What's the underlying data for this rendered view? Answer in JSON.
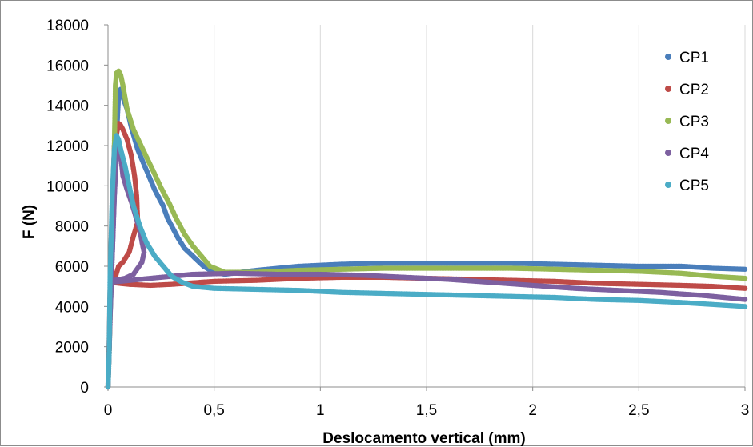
{
  "chart_data": {
    "type": "scatter",
    "xlabel": "Deslocamento vertical (mm)",
    "ylabel": "F (N)",
    "xlim": [
      0,
      3
    ],
    "ylim": [
      0,
      18000
    ],
    "x_ticks": [
      0,
      0.5,
      1,
      1.5,
      2,
      2.5,
      3
    ],
    "x_tick_labels": [
      "0",
      "0,5",
      "1",
      "1,5",
      "2",
      "2,5",
      "3"
    ],
    "y_ticks": [
      0,
      2000,
      4000,
      6000,
      8000,
      10000,
      12000,
      14000,
      16000,
      18000
    ],
    "y_tick_labels": [
      "0",
      "2000",
      "4000",
      "6000",
      "8000",
      "10000",
      "12000",
      "14000",
      "16000",
      "18000"
    ],
    "grid": "vertical",
    "legend_position": "top-right",
    "series": [
      {
        "name": "CP1",
        "color": "#4a7ebb",
        "points": [
          [
            0,
            0
          ],
          [
            0.005,
            1500
          ],
          [
            0.01,
            3500
          ],
          [
            0.02,
            6500
          ],
          [
            0.03,
            9500
          ],
          [
            0.04,
            12500
          ],
          [
            0.05,
            14500
          ],
          [
            0.06,
            14800
          ],
          [
            0.07,
            14400
          ],
          [
            0.09,
            13800
          ],
          [
            0.11,
            12900
          ],
          [
            0.14,
            11800
          ],
          [
            0.18,
            10800
          ],
          [
            0.22,
            9800
          ],
          [
            0.26,
            9000
          ],
          [
            0.28,
            8400
          ],
          [
            0.3,
            8000
          ],
          [
            0.33,
            7400
          ],
          [
            0.36,
            6900
          ],
          [
            0.4,
            6500
          ],
          [
            0.45,
            6000
          ],
          [
            0.5,
            5700
          ],
          [
            0.55,
            5600
          ],
          [
            0.7,
            5800
          ],
          [
            0.9,
            6000
          ],
          [
            1.1,
            6100
          ],
          [
            1.3,
            6150
          ],
          [
            1.5,
            6150
          ],
          [
            1.7,
            6150
          ],
          [
            1.9,
            6150
          ],
          [
            2.1,
            6100
          ],
          [
            2.3,
            6050
          ],
          [
            2.5,
            6000
          ],
          [
            2.7,
            6000
          ],
          [
            2.85,
            5900
          ],
          [
            3,
            5850
          ]
        ]
      },
      {
        "name": "CP2",
        "color": "#be4b48",
        "points": [
          [
            0,
            0
          ],
          [
            0.005,
            2000
          ],
          [
            0.01,
            5000
          ],
          [
            0.02,
            5500
          ],
          [
            0.03,
            5300
          ],
          [
            0.05,
            6000
          ],
          [
            0.07,
            6200
          ],
          [
            0.1,
            6700
          ],
          [
            0.12,
            7500
          ],
          [
            0.14,
            8200
          ],
          [
            0.135,
            9500
          ],
          [
            0.125,
            10500
          ],
          [
            0.11,
            11500
          ],
          [
            0.09,
            12300
          ],
          [
            0.07,
            12800
          ],
          [
            0.06,
            13000
          ],
          [
            0.05,
            13100
          ],
          [
            0.03,
            12000
          ],
          [
            0.02,
            9000
          ],
          [
            0.01,
            5200
          ],
          [
            0.1,
            5100
          ],
          [
            0.2,
            5050
          ],
          [
            0.3,
            5100
          ],
          [
            0.5,
            5250
          ],
          [
            0.7,
            5300
          ],
          [
            0.9,
            5400
          ],
          [
            1.1,
            5450
          ],
          [
            1.3,
            5450
          ],
          [
            1.5,
            5400
          ],
          [
            1.7,
            5350
          ],
          [
            1.9,
            5300
          ],
          [
            2.1,
            5250
          ],
          [
            2.3,
            5150
          ],
          [
            2.5,
            5100
          ],
          [
            2.7,
            5050
          ],
          [
            2.85,
            5000
          ],
          [
            3,
            4900
          ]
        ]
      },
      {
        "name": "CP3",
        "color": "#98b954",
        "points": [
          [
            0,
            0
          ],
          [
            0.005,
            1500
          ],
          [
            0.01,
            3500
          ],
          [
            0.02,
            7000
          ],
          [
            0.03,
            12000
          ],
          [
            0.035,
            15000
          ],
          [
            0.04,
            15600
          ],
          [
            0.05,
            15700
          ],
          [
            0.06,
            15500
          ],
          [
            0.07,
            15000
          ],
          [
            0.09,
            13800
          ],
          [
            0.12,
            12800
          ],
          [
            0.16,
            11900
          ],
          [
            0.21,
            10800
          ],
          [
            0.25,
            9900
          ],
          [
            0.29,
            9100
          ],
          [
            0.32,
            8400
          ],
          [
            0.36,
            7600
          ],
          [
            0.4,
            7000
          ],
          [
            0.44,
            6500
          ],
          [
            0.48,
            6000
          ],
          [
            0.55,
            5700
          ],
          [
            0.7,
            5700
          ],
          [
            0.9,
            5800
          ],
          [
            1.1,
            5850
          ],
          [
            1.3,
            5900
          ],
          [
            1.5,
            5900
          ],
          [
            1.7,
            5900
          ],
          [
            1.9,
            5900
          ],
          [
            2.1,
            5850
          ],
          [
            2.3,
            5800
          ],
          [
            2.5,
            5750
          ],
          [
            2.7,
            5650
          ],
          [
            2.85,
            5500
          ],
          [
            3,
            5400
          ]
        ]
      },
      {
        "name": "CP4",
        "color": "#7d60a0",
        "points": [
          [
            0,
            0
          ],
          [
            0.005,
            1500
          ],
          [
            0.01,
            3500
          ],
          [
            0.02,
            6500
          ],
          [
            0.03,
            9500
          ],
          [
            0.04,
            11500
          ],
          [
            0.05,
            11800
          ],
          [
            0.06,
            11500
          ],
          [
            0.07,
            10500
          ],
          [
            0.09,
            9800
          ],
          [
            0.11,
            9200
          ],
          [
            0.13,
            8500
          ],
          [
            0.15,
            7800
          ],
          [
            0.16,
            7200
          ],
          [
            0.17,
            6700
          ],
          [
            0.16,
            6200
          ],
          [
            0.14,
            5900
          ],
          [
            0.12,
            5600
          ],
          [
            0.08,
            5400
          ],
          [
            0.03,
            5300
          ],
          [
            0.01,
            5200
          ],
          [
            0.2,
            5400
          ],
          [
            0.4,
            5600
          ],
          [
            0.6,
            5650
          ],
          [
            0.8,
            5600
          ],
          [
            1,
            5600
          ],
          [
            1.2,
            5550
          ],
          [
            1.4,
            5450
          ],
          [
            1.6,
            5350
          ],
          [
            1.8,
            5200
          ],
          [
            2,
            5050
          ],
          [
            2.2,
            4900
          ],
          [
            2.4,
            4800
          ],
          [
            2.6,
            4700
          ],
          [
            2.8,
            4550
          ],
          [
            2.9,
            4450
          ],
          [
            3,
            4350
          ]
        ]
      },
      {
        "name": "CP5",
        "color": "#4bacc6",
        "points": [
          [
            0,
            0
          ],
          [
            0.005,
            1500
          ],
          [
            0.01,
            5500
          ],
          [
            0.02,
            9500
          ],
          [
            0.03,
            11800
          ],
          [
            0.04,
            12500
          ],
          [
            0.05,
            12300
          ],
          [
            0.06,
            11800
          ],
          [
            0.08,
            11000
          ],
          [
            0.1,
            10000
          ],
          [
            0.12,
            9000
          ],
          [
            0.15,
            8000
          ],
          [
            0.18,
            7200
          ],
          [
            0.22,
            6500
          ],
          [
            0.26,
            6000
          ],
          [
            0.3,
            5500
          ],
          [
            0.35,
            5200
          ],
          [
            0.4,
            5000
          ],
          [
            0.5,
            4900
          ],
          [
            0.7,
            4850
          ],
          [
            0.9,
            4800
          ],
          [
            1.1,
            4700
          ],
          [
            1.3,
            4650
          ],
          [
            1.5,
            4600
          ],
          [
            1.7,
            4550
          ],
          [
            1.9,
            4500
          ],
          [
            2.1,
            4450
          ],
          [
            2.3,
            4350
          ],
          [
            2.5,
            4300
          ],
          [
            2.7,
            4200
          ],
          [
            2.85,
            4100
          ],
          [
            3,
            4000
          ]
        ]
      }
    ]
  }
}
